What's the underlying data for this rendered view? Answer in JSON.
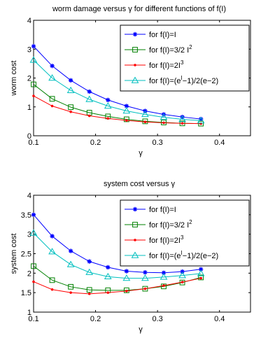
{
  "chart_data": [
    {
      "type": "line",
      "title": "worm damage versus γ for different functions of f(I)",
      "xlabel": "γ",
      "ylabel": "worm cost",
      "xlim": [
        0.1,
        0.45
      ],
      "ylim": [
        0,
        4
      ],
      "xticks": [
        0.1,
        0.2,
        0.3,
        0.4
      ],
      "yticks": [
        0,
        1,
        2,
        3,
        4
      ],
      "x": [
        0.1,
        0.13,
        0.16,
        0.19,
        0.22,
        0.25,
        0.28,
        0.31,
        0.34,
        0.37
      ],
      "grid": false,
      "legend_position": "top-right",
      "series": [
        {
          "name": "for f(I)=I",
          "values": [
            3.1,
            2.42,
            1.92,
            1.53,
            1.24,
            1.03,
            0.86,
            0.74,
            0.65,
            0.58
          ]
        },
        {
          "name": "for f(I)=3/2 I²",
          "values": [
            1.78,
            1.28,
            0.99,
            0.8,
            0.67,
            0.57,
            0.5,
            0.46,
            0.43,
            0.42
          ]
        },
        {
          "name": "for f(I)=2I³",
          "values": [
            1.38,
            1.03,
            0.83,
            0.69,
            0.6,
            0.53,
            0.48,
            0.45,
            0.43,
            0.42
          ]
        },
        {
          "name": "for f(I)=(eᴵ−1)/2(e−2)",
          "values": [
            2.62,
            2.0,
            1.57,
            1.26,
            1.03,
            0.86,
            0.74,
            0.64,
            0.57,
            0.52
          ]
        }
      ]
    },
    {
      "type": "line",
      "title": "system cost versus γ",
      "xlabel": "γ",
      "ylabel": "system cost",
      "xlim": [
        0.1,
        0.45
      ],
      "ylim": [
        1,
        4
      ],
      "xticks": [
        0.1,
        0.2,
        0.3,
        0.4
      ],
      "yticks": [
        1,
        1.5,
        2,
        2.5,
        3,
        3.5,
        4
      ],
      "x": [
        0.1,
        0.13,
        0.16,
        0.19,
        0.22,
        0.25,
        0.28,
        0.31,
        0.34,
        0.37
      ],
      "grid": false,
      "legend_position": "top-right",
      "series": [
        {
          "name": "for f(I)=I",
          "values": [
            3.5,
            2.95,
            2.57,
            2.3,
            2.15,
            2.05,
            2.02,
            2.01,
            2.04,
            2.1
          ]
        },
        {
          "name": "for f(I)=3/2 I²",
          "values": [
            2.18,
            1.82,
            1.65,
            1.57,
            1.56,
            1.56,
            1.6,
            1.66,
            1.76,
            1.89
          ]
        },
        {
          "name": "for f(I)=2I³",
          "values": [
            1.78,
            1.58,
            1.5,
            1.47,
            1.5,
            1.54,
            1.6,
            1.68,
            1.77,
            1.87
          ]
        },
        {
          "name": "for f(I)=(eᴵ−1)/2(e−2)",
          "values": [
            3.03,
            2.55,
            2.22,
            2.02,
            1.91,
            1.87,
            1.87,
            1.9,
            1.94,
            1.99
          ]
        }
      ]
    }
  ],
  "style": {
    "colors": [
      "#0000ff",
      "#008000",
      "#ff0000",
      "#00bfbf"
    ],
    "markers": [
      "star",
      "square",
      "dot",
      "triangle"
    ],
    "axis_color": "#000000"
  }
}
